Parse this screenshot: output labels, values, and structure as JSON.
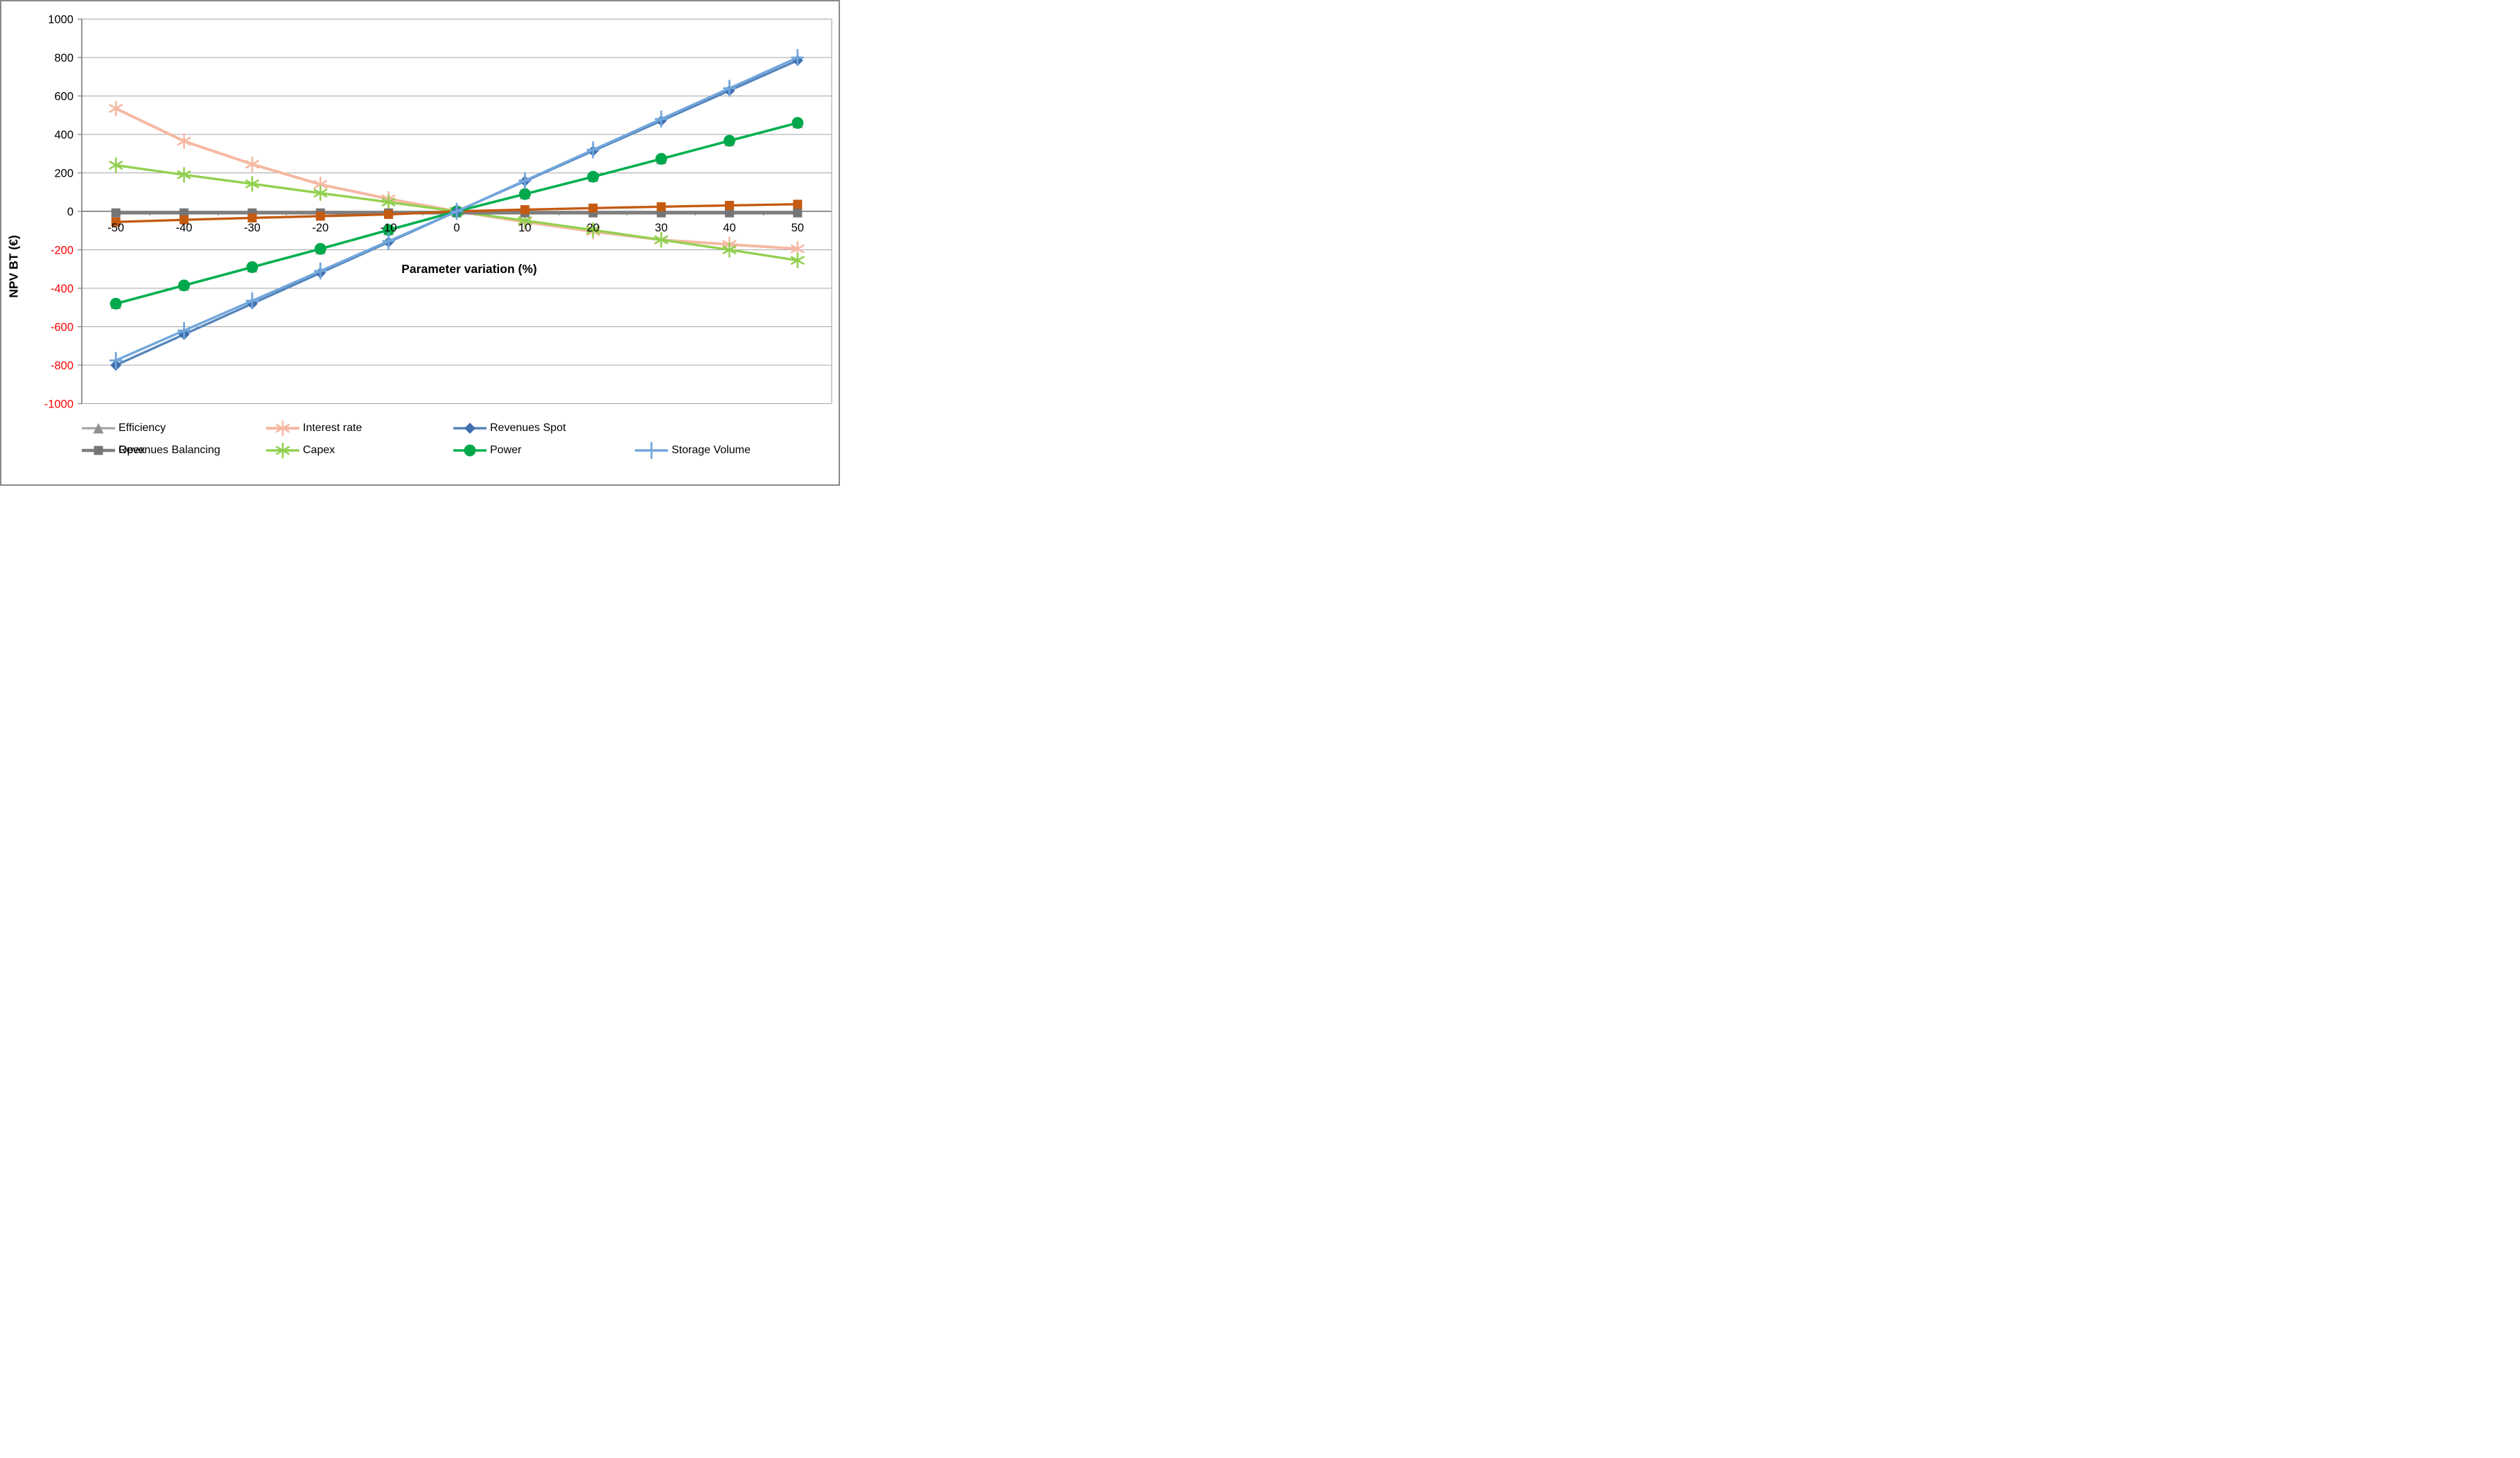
{
  "figure": {
    "x_axis_title": "Parameter variation (%)",
    "y_axis_title": "NPV BT (€)"
  },
  "chart_data": {
    "type": "line",
    "title": "",
    "xlabel": "Parameter variation (%)",
    "ylabel": "NPV BT (€)",
    "categories": [
      -50,
      -40,
      -30,
      -20,
      -10,
      0,
      10,
      20,
      30,
      40,
      50
    ],
    "x_tick_labels": [
      "-50",
      "-40",
      "-30",
      "-20",
      "-10",
      "0",
      "10",
      "20",
      "30",
      "40",
      "50"
    ],
    "y_ticks": [
      1000,
      800,
      600,
      400,
      200,
      0,
      -200,
      -400,
      -600,
      -800,
      -1000
    ],
    "y_tick_labels": [
      "1000",
      "800",
      "600",
      "400",
      "200",
      "0",
      "-200",
      "-400",
      "-600",
      "-800",
      "-1000"
    ],
    "ylim": [
      -1000,
      1000
    ],
    "grid": "horizontal",
    "legend_position": "bottom",
    "grid_color": "#a6a6a6",
    "axis_color": "#808080",
    "tick_label_color": "#000000",
    "negative_tick_color": "#ff0000",
    "series": [
      {
        "name": "Efficiency",
        "color": "#a6a6a6",
        "marker_color": "#8f8f8f",
        "marker": "triangle",
        "line_width": 3.2,
        "values": [
          -480,
          -385,
          -290,
          -195,
          -97,
          0,
          90,
          180,
          273,
          367,
          460
        ],
        "legend_row": 0,
        "legend_col": 0
      },
      {
        "name": "Interest rate",
        "color": "#f5b8a2",
        "marker_color": "#f5b8a2",
        "marker": "star6",
        "line_width": 4.0,
        "values": [
          535,
          365,
          245,
          140,
          65,
          0,
          -55,
          -105,
          -148,
          -172,
          -195
        ],
        "legend_row": 0,
        "legend_col": 1
      },
      {
        "name": "Revenues Spot",
        "color": "#5585bb",
        "marker_color": "#3f6fae",
        "marker": "diamond",
        "line_width": 3.4,
        "values": [
          -800,
          -640,
          -480,
          -320,
          -160,
          0,
          157,
          314,
          471,
          628,
          785
        ],
        "legend_row": 0,
        "legend_col": 2
      },
      {
        "name": "Revenues Balancing",
        "color": "#c55a11",
        "marker_color": "#c55a11",
        "marker": "square",
        "line_width": 3.4,
        "values": [
          -55,
          -44,
          -34,
          -25,
          -16,
          0,
          9,
          17,
          24,
          31,
          37
        ],
        "legend_row": 1,
        "legend_col": 0
      },
      {
        "name": "Opex",
        "color": "#7f7f7f",
        "marker_color": "#757575",
        "marker": "square",
        "line_width": 4.6,
        "values": [
          -8,
          -8,
          -8,
          -8,
          -8,
          -8,
          -8,
          -8,
          -8,
          -8,
          -8
        ],
        "legend_row": 1,
        "legend_col": 0
      },
      {
        "name": "Capex",
        "color": "#92d050",
        "marker_color": "#92d050",
        "marker": "star6",
        "line_width": 3.4,
        "values": [
          240,
          190,
          143,
          95,
          48,
          0,
          -48,
          -97,
          -148,
          -200,
          -255
        ],
        "legend_row": 1,
        "legend_col": 1
      },
      {
        "name": "Power",
        "color": "#00b050",
        "marker_color": "#00a84c",
        "marker": "circle",
        "line_width": 3.6,
        "values": [
          -480,
          -385,
          -290,
          -195,
          -97,
          0,
          90,
          180,
          273,
          367,
          460
        ],
        "legend_row": 1,
        "legend_col": 2
      },
      {
        "name": "Storage Volume",
        "color": "#71a6dc",
        "marker_color": "#71a6dc",
        "marker": "plus",
        "line_width": 3.4,
        "values": [
          -775,
          -620,
          -465,
          -310,
          -155,
          0,
          160,
          320,
          480,
          640,
          800
        ],
        "legend_row": 1,
        "legend_col": 3
      }
    ],
    "legend_rows": [
      [
        "Efficiency",
        "Interest rate",
        "Revenues Spot",
        "Revenues Balancing"
      ],
      [
        "Opex",
        "Capex",
        "Power",
        "Storage Volume"
      ]
    ],
    "draw_order": [
      1,
      5,
      4,
      3,
      0,
      6,
      2,
      7
    ]
  }
}
